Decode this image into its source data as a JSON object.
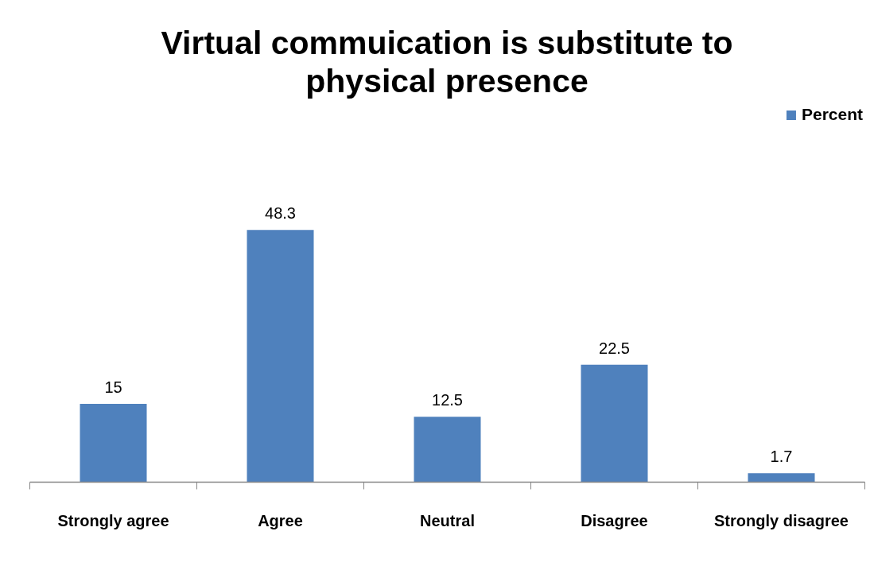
{
  "chart_data": {
    "type": "bar",
    "title": "Virtual commuication is substitute to physical presence",
    "categories": [
      "Strongly agree",
      "Agree",
      "Neutral",
      "Disagree",
      "Strongly disagree"
    ],
    "series": [
      {
        "name": "Percent",
        "color": "#4f81bd",
        "values": [
          15,
          48.3,
          12.5,
          22.5,
          1.7
        ]
      }
    ],
    "data_labels": true,
    "legend": "top right"
  }
}
